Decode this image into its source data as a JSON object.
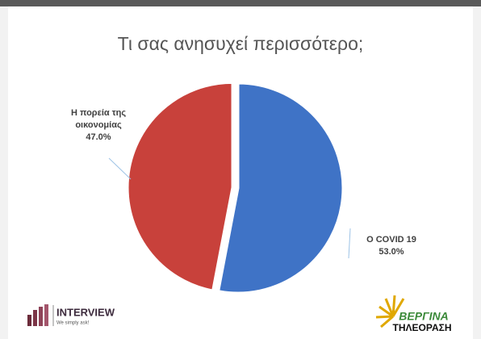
{
  "chart_data": {
    "type": "pie",
    "title": "Τι σας ανησυχεί περισσότερο;",
    "categories": [
      "Ο COVID 19",
      "Η πορεία της οικονομίας"
    ],
    "values": [
      53.0,
      47.0
    ],
    "value_labels": [
      "53.0%",
      "47.0%"
    ],
    "colors": [
      "#3f73c6",
      "#c8413b"
    ]
  },
  "logos": {
    "left_name": "INTERVIEW",
    "left_slogan": "We simply ask!",
    "right_name": "ΒΕΡΓΙΝΑ",
    "right_sub": "ΤΗΛΕΟΡΑΣΗ"
  }
}
